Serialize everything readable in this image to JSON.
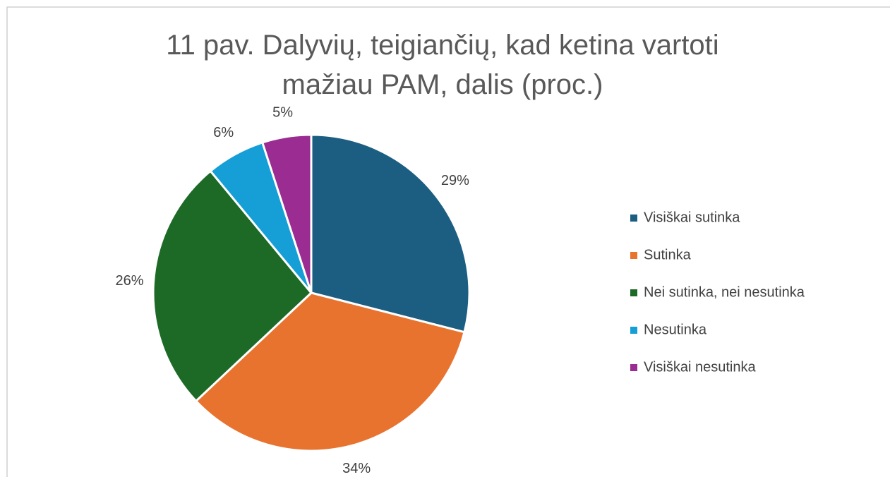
{
  "chart_data": {
    "type": "pie",
    "title": "11 pav. Dalyvių, teigiančių, kad ketina vartoti mažiau PAM, dalis (proc.)",
    "categories": [
      "Visiškai sutinka",
      "Sutinka",
      "Nei sutinka, nei nesutinka",
      "Nesutinka",
      "Visiškai nesutinka"
    ],
    "values": [
      29,
      34,
      26,
      6,
      5
    ],
    "value_labels": [
      "29%",
      "34%",
      "26%",
      "6%",
      "5%"
    ],
    "colors": [
      "#1b5e82",
      "#e8732f",
      "#1d6a27",
      "#159fd6",
      "#9a2c92"
    ],
    "legend": "right"
  }
}
